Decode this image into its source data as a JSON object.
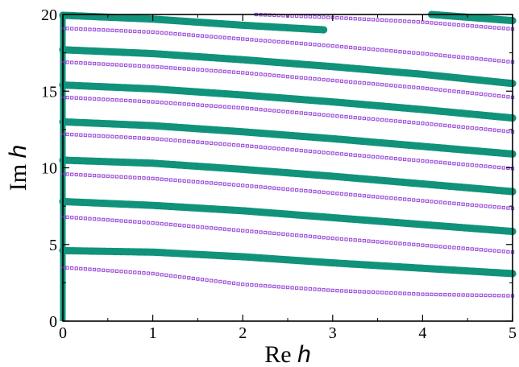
{
  "chart_data": {
    "type": "scatter",
    "title": "",
    "xlabel": {
      "prefix": "Re ",
      "var": "h"
    },
    "ylabel": {
      "prefix": "Im ",
      "var": "h"
    },
    "xlim": [
      0,
      5
    ],
    "ylim": [
      0,
      20
    ],
    "xticks": [
      "0",
      "1",
      "2",
      "3",
      "4",
      "5"
    ],
    "yticks": [
      "0",
      "5",
      "10",
      "15",
      "20"
    ],
    "grid": false,
    "legend": "none",
    "colors": {
      "green": "#10937a",
      "purple": "#9b4fd8"
    },
    "series": [
      {
        "marker": "filled-circle",
        "color": "green",
        "vertical_line": {
          "x": 0,
          "y": [
            0,
            20
          ]
        },
        "branches": [
          {
            "x": [
              0,
              1,
              2,
              3,
              4,
              5
            ],
            "y": [
              4.6,
              4.5,
              4.2,
              3.8,
              3.45,
              3.1
            ]
          },
          {
            "x": [
              0,
              1,
              2,
              3,
              4,
              5
            ],
            "y": [
              7.8,
              7.55,
              7.2,
              6.75,
              6.3,
              5.85
            ]
          },
          {
            "x": [
              0,
              1,
              2,
              3,
              4,
              5
            ],
            "y": [
              10.5,
              10.3,
              9.9,
              9.45,
              8.95,
              8.45
            ]
          },
          {
            "x": [
              0,
              1,
              2,
              3,
              4,
              5
            ],
            "y": [
              13.0,
              12.75,
              12.35,
              11.9,
              11.4,
              10.9
            ]
          },
          {
            "x": [
              0,
              1,
              2,
              3,
              4,
              5
            ],
            "y": [
              15.4,
              15.15,
              14.75,
              14.3,
              13.8,
              13.25
            ]
          },
          {
            "x": [
              0,
              1,
              2,
              3,
              4,
              5
            ],
            "y": [
              17.7,
              17.45,
              17.05,
              16.6,
              16.1,
              15.5
            ]
          },
          {
            "x": [
              0,
              1,
              2,
              2.9
            ],
            "y": [
              19.95,
              19.7,
              19.3,
              19.0
            ]
          },
          {
            "x": [
              4.1,
              5
            ],
            "y": [
              20.0,
              19.6
            ]
          }
        ]
      },
      {
        "marker": "open-square",
        "color": "purple",
        "branches": [
          {
            "x": [
              0,
              1,
              2,
              3,
              4,
              5
            ],
            "y": [
              3.5,
              3.1,
              2.4,
              2.0,
              1.75,
              1.65
            ]
          },
          {
            "x": [
              0,
              1,
              2,
              3,
              4,
              5
            ],
            "y": [
              6.8,
              6.4,
              5.9,
              5.4,
              4.95,
              4.5
            ]
          },
          {
            "x": [
              0,
              1,
              2,
              3,
              4,
              5
            ],
            "y": [
              9.6,
              9.3,
              8.85,
              8.35,
              7.85,
              7.35
            ]
          },
          {
            "x": [
              0,
              1,
              2,
              3,
              4,
              5
            ],
            "y": [
              12.2,
              11.9,
              11.45,
              10.95,
              10.45,
              9.95
            ]
          },
          {
            "x": [
              0,
              1,
              2,
              3,
              4,
              5
            ],
            "y": [
              14.6,
              14.3,
              13.9,
              13.4,
              12.9,
              12.35
            ]
          },
          {
            "x": [
              0,
              1,
              2,
              3,
              4,
              5
            ],
            "y": [
              16.9,
              16.6,
              16.2,
              15.7,
              15.2,
              14.6
            ]
          },
          {
            "x": [
              0,
              1,
              2,
              3,
              4,
              5
            ],
            "y": [
              19.1,
              18.85,
              18.4,
              17.95,
              17.45,
              16.9
            ]
          },
          {
            "x": [
              2.15,
              3,
              4,
              5
            ],
            "y": [
              20.0,
              19.8,
              19.5,
              19.05
            ]
          }
        ]
      }
    ]
  }
}
